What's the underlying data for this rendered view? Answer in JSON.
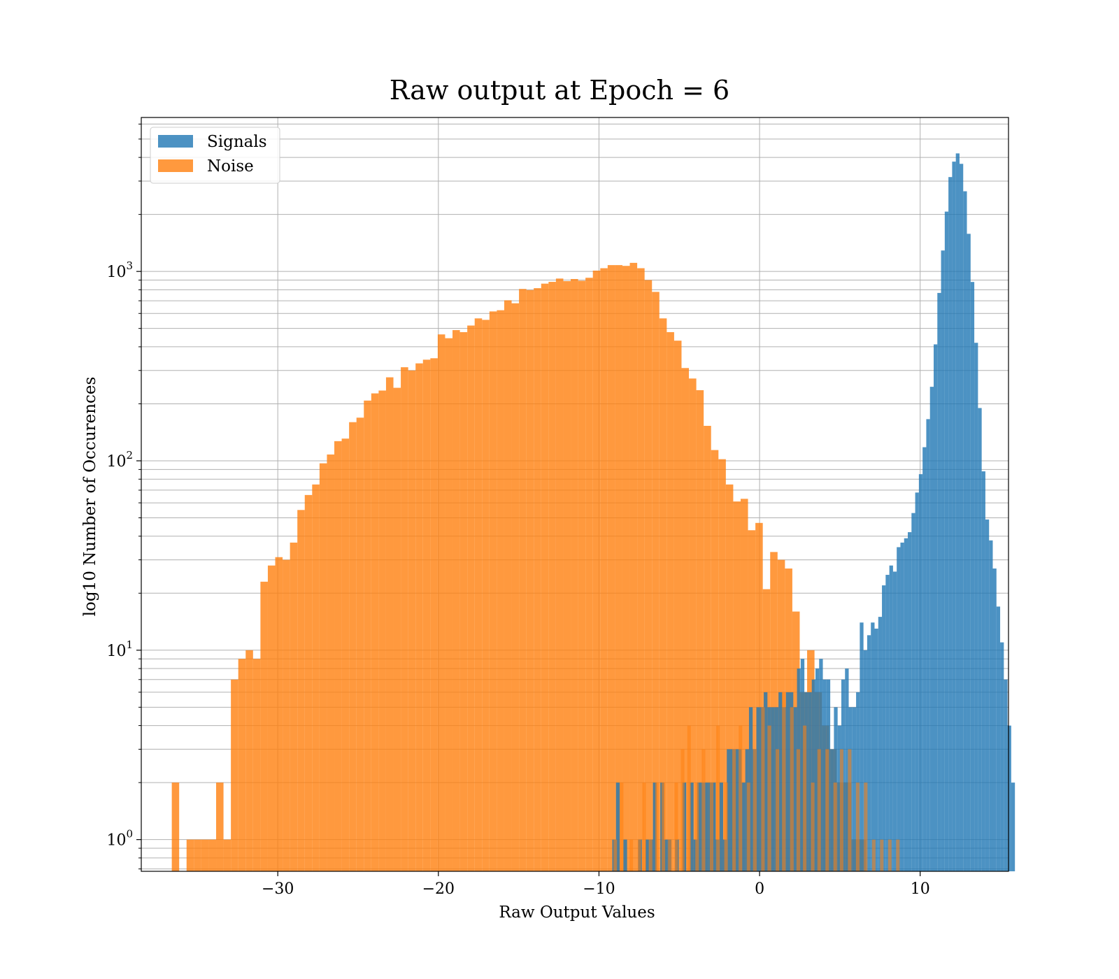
{
  "chart_data": {
    "type": "bar",
    "title": "Raw output at Epoch = 6",
    "xlabel": "Raw Output Values",
    "ylabel": "log10 Number of Occurences",
    "yscale": "log",
    "xlim": [
      -38.5,
      15.5
    ],
    "ylim": [
      0.68,
      6500
    ],
    "grid": true,
    "legend": {
      "position": "top-left",
      "entries": [
        "Signals",
        "Noise"
      ]
    },
    "x_ticks": [
      {
        "value": -30,
        "label": "−30"
      },
      {
        "value": -20,
        "label": "−20"
      },
      {
        "value": -10,
        "label": "−10"
      },
      {
        "value": 0,
        "label": "0"
      },
      {
        "value": 10,
        "label": "10"
      }
    ],
    "y_ticks": [
      {
        "value": 1,
        "base": "10",
        "exp": "0"
      },
      {
        "value": 10,
        "base": "10",
        "exp": "1"
      },
      {
        "value": 100,
        "base": "10",
        "exp": "2"
      },
      {
        "value": 1000,
        "base": "10",
        "exp": "3"
      }
    ],
    "series": [
      {
        "name": "Signals",
        "color": "#1f77b4",
        "opacity": 0.8,
        "bin_width": 0.23,
        "bin_start": -9.17,
        "values": [
          1,
          2,
          0,
          1,
          0,
          0,
          0,
          1,
          0,
          1,
          1,
          2,
          0,
          2,
          1,
          1,
          0,
          1,
          0,
          2,
          0,
          2,
          1,
          2,
          2,
          2,
          2,
          2,
          1,
          2,
          1,
          3,
          3,
          3,
          3,
          2,
          3,
          5,
          3,
          5,
          5,
          6,
          5,
          5,
          5,
          6,
          5,
          6,
          6,
          5,
          8,
          9,
          6,
          6,
          7,
          8,
          9,
          7,
          7,
          3,
          5,
          4,
          7,
          8,
          5,
          5,
          6,
          14,
          10,
          12,
          14,
          13,
          15,
          22,
          25,
          28,
          26,
          35,
          37,
          39,
          42,
          53,
          68,
          85,
          118,
          166,
          246,
          412,
          770,
          1290,
          2070,
          3150,
          3800,
          4200,
          3700,
          2650,
          1580,
          880,
          420,
          190,
          88,
          49,
          38,
          27,
          17,
          11,
          7,
          4,
          2
        ]
      },
      {
        "name": "Noise",
        "color": "#ff7f0e",
        "opacity": 0.8,
        "bin_width": 0.46,
        "bin_start": -36.6,
        "values": [
          2,
          0,
          1,
          1,
          1,
          1,
          2,
          1,
          7,
          9,
          10,
          9,
          23,
          28,
          31,
          30,
          37,
          55,
          66,
          75,
          97,
          108,
          127,
          131,
          160,
          169,
          208,
          227,
          235,
          276,
          243,
          312,
          300,
          327,
          342,
          348,
          465,
          444,
          490,
          478,
          518,
          565,
          555,
          615,
          624,
          704,
          679,
          808,
          797,
          816,
          862,
          881,
          917,
          889,
          912,
          893,
          926,
          1010,
          1040,
          1080,
          1080,
          1070,
          1110,
          1040,
          900,
          780,
          565,
          478,
          431,
          309,
          272,
          236,
          153,
          114,
          102,
          75,
          61,
          63,
          43,
          47,
          21,
          33,
          30,
          27,
          16,
          6,
          10,
          6,
          4,
          3,
          2,
          2,
          1,
          1,
          0
        ]
      }
    ],
    "noise_overlap_x": [
      -9.1,
      -8.7,
      -8.1,
      -7.6,
      -7.3,
      -6.9,
      -6.5,
      -6.1,
      -5.7,
      -5.3,
      -4.9,
      -4.5,
      -4.0,
      -3.6,
      -3.1,
      -2.7,
      -2.2,
      -1.7,
      -1.3,
      -0.8,
      -0.4,
      0.1,
      0.5,
      1.0,
      1.4,
      1.9,
      2.3,
      2.7,
      3.2,
      3.6,
      4.1,
      4.6,
      5.0,
      5.5,
      6.0,
      6.5,
      7.0,
      7.5,
      8.0,
      8.5
    ],
    "noise_overlap_values": [
      1,
      2,
      1,
      1,
      2,
      1,
      2,
      2,
      1,
      2,
      3,
      4,
      2,
      3,
      2,
      4,
      2,
      3,
      4,
      2,
      3,
      5,
      4,
      3,
      6,
      5,
      3,
      4,
      2,
      3,
      3,
      2,
      3,
      3,
      2,
      2,
      1,
      1,
      1,
      1
    ]
  }
}
